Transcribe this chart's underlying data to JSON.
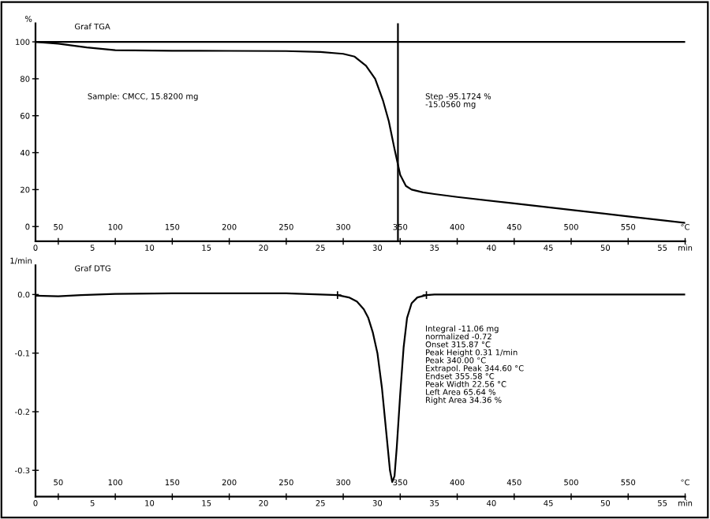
{
  "chart_data": [
    {
      "type": "line",
      "title": "Graf TGA",
      "ylabel": "%",
      "x": [
        30,
        50,
        75,
        100,
        150,
        200,
        250,
        280,
        300,
        310,
        320,
        328,
        335,
        340,
        345,
        350,
        355,
        360,
        370,
        380,
        400,
        450,
        500,
        550,
        600
      ],
      "series": [
        {
          "color": "#000000",
          "values": [
            100,
            99,
            97,
            95.5,
            95.2,
            95.1,
            95,
            94.5,
            93.5,
            92,
            87,
            80,
            68,
            57,
            42,
            28,
            22,
            20,
            18.5,
            17.6,
            16,
            12.5,
            9,
            5.5,
            2
          ]
        }
      ],
      "xlim": [
        30,
        600
      ],
      "ylim": [
        -8,
        110
      ],
      "xticks": [
        50,
        100,
        150,
        200,
        250,
        300,
        350,
        400,
        450,
        500,
        550,
        {
          "value": 600,
          "label": "°C"
        }
      ],
      "yticks": [
        0,
        20,
        40,
        60,
        80,
        100
      ],
      "x2lim": [
        0,
        57
      ],
      "x2ticks": [
        0,
        5,
        10,
        15,
        20,
        25,
        30,
        35,
        40,
        45,
        50,
        55,
        {
          "value": 57,
          "label": "min"
        }
      ],
      "ref_lines": [
        {
          "axis": "y",
          "value": 100,
          "color": "#000000"
        },
        {
          "axis": "x",
          "value": 348,
          "color": "#000000"
        }
      ],
      "annotations": [
        "Sample: CMCC, 15.8200 mg",
        "Step -95.1724 %\n-15.0560 mg"
      ],
      "grid": false,
      "legend": false,
      "marker": "none",
      "line_style": "solid"
    },
    {
      "type": "line",
      "title": "Graf DTG",
      "ylabel": "1/min",
      "x": [
        30,
        50,
        70,
        100,
        150,
        200,
        250,
        280,
        295,
        305,
        312,
        318,
        322,
        326,
        330,
        334,
        338,
        341,
        343,
        345,
        347,
        350,
        353,
        356,
        360,
        365,
        373,
        380,
        420,
        500,
        600
      ],
      "series": [
        {
          "color": "#000000",
          "values": [
            -0.002,
            -0.003,
            -0.001,
            0.001,
            0.002,
            0.002,
            0.002,
            0.0,
            -0.001,
            -0.005,
            -0.012,
            -0.025,
            -0.04,
            -0.065,
            -0.1,
            -0.16,
            -0.24,
            -0.3,
            -0.32,
            -0.31,
            -0.26,
            -0.17,
            -0.09,
            -0.04,
            -0.015,
            -0.005,
            -0.001,
            0.0,
            0.0,
            0.0,
            0.0
          ]
        },
        {
          "type": "scatter",
          "marker": "cross",
          "color": "#000000",
          "x": [
            295,
            373
          ],
          "values": [
            -0.001,
            -0.001
          ]
        }
      ],
      "xlim": [
        30,
        600
      ],
      "ylim": [
        -0.345,
        0.05
      ],
      "xticks": [
        50,
        100,
        150,
        200,
        250,
        300,
        350,
        400,
        450,
        500,
        550,
        {
          "value": 600,
          "label": "°C"
        }
      ],
      "yticks": [
        {
          "value": 0.0,
          "label": "0.0"
        },
        {
          "value": -0.1,
          "label": "-0.1"
        },
        {
          "value": -0.2,
          "label": "-0.2"
        },
        {
          "value": -0.3,
          "label": "-0.3"
        }
      ],
      "x2lim": [
        0,
        57
      ],
      "x2ticks": [
        0,
        5,
        10,
        15,
        20,
        25,
        30,
        35,
        40,
        45,
        50,
        55,
        {
          "value": 57,
          "label": "min"
        }
      ],
      "annotations": [
        "Integral -11.06 mg\nnormalized -0.72\nOnset 315.87 °C\nPeak Height 0.31 1/min\nPeak 340.00 °C\nExtrapol. Peak 344.60 °C\nEndset 355.58 °C\nPeak Width 22.56 °C\nLeft Area 65.64 %\nRight Area 34.36 %"
      ],
      "grid": false,
      "legend": false,
      "marker": "none",
      "line_style": "solid"
    }
  ]
}
